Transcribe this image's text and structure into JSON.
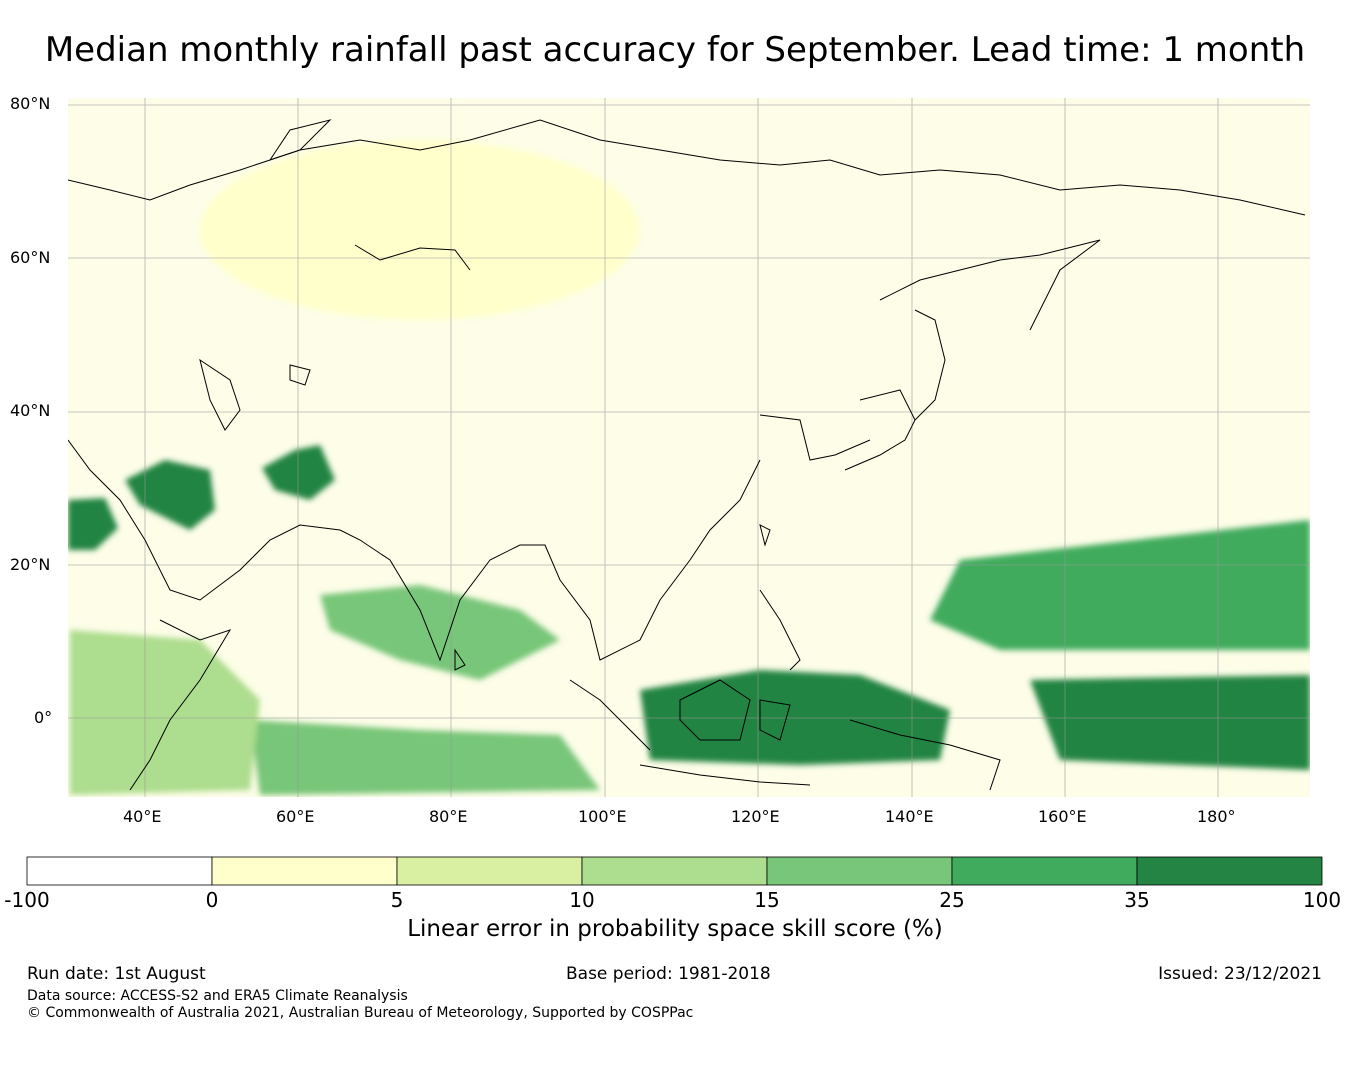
{
  "title": "Median monthly rainfall past accuracy for September. Lead time: 1 month",
  "map": {
    "lat_labels": [
      "80°N",
      "60°N",
      "40°N",
      "20°N",
      "0°"
    ],
    "lon_labels": [
      "40°E",
      "60°E",
      "80°E",
      "100°E",
      "120°E",
      "140°E",
      "160°E",
      "180°"
    ],
    "extent": {
      "lon_min": 30,
      "lon_max": 192,
      "lat_min": -10,
      "lat_max": 80
    },
    "regions": [
      {
        "name": "arabian-levant",
        "category": 6
      },
      {
        "name": "iran-plateau",
        "category": 6
      },
      {
        "name": "red-sea-west",
        "category": 6
      },
      {
        "name": "maritime-continent",
        "category": 6
      },
      {
        "name": "west-pacific",
        "category": 6
      },
      {
        "name": "north-pacific-band",
        "category": 5
      },
      {
        "name": "india-bay-of-bengal",
        "category": 4
      },
      {
        "name": "indian-ocean-south",
        "category": 4
      },
      {
        "name": "east-africa",
        "category": 3
      },
      {
        "name": "siberia-north",
        "category": 1
      }
    ]
  },
  "colorbar": {
    "ticks": [
      "-100",
      "0",
      "5",
      "10",
      "15",
      "25",
      "35",
      "100"
    ],
    "colors": [
      "#ffffff",
      "#ffffcc",
      "#d9f0a3",
      "#addd8e",
      "#78c679",
      "#41ab5d",
      "#238443"
    ],
    "label": "Linear error in probability space skill score (%)"
  },
  "footer": {
    "run_date": "Run date: 1st August",
    "base_period": "Base period: 1981-2018",
    "issued": "Issued: 23/12/2021",
    "data_source": "Data source: ACCESS-S2 and ERA5 Climate Reanalysis",
    "copyright": "© Commonwealth of Australia 2021, Australian Bureau of Meteorology, Supported by COSPPac"
  }
}
